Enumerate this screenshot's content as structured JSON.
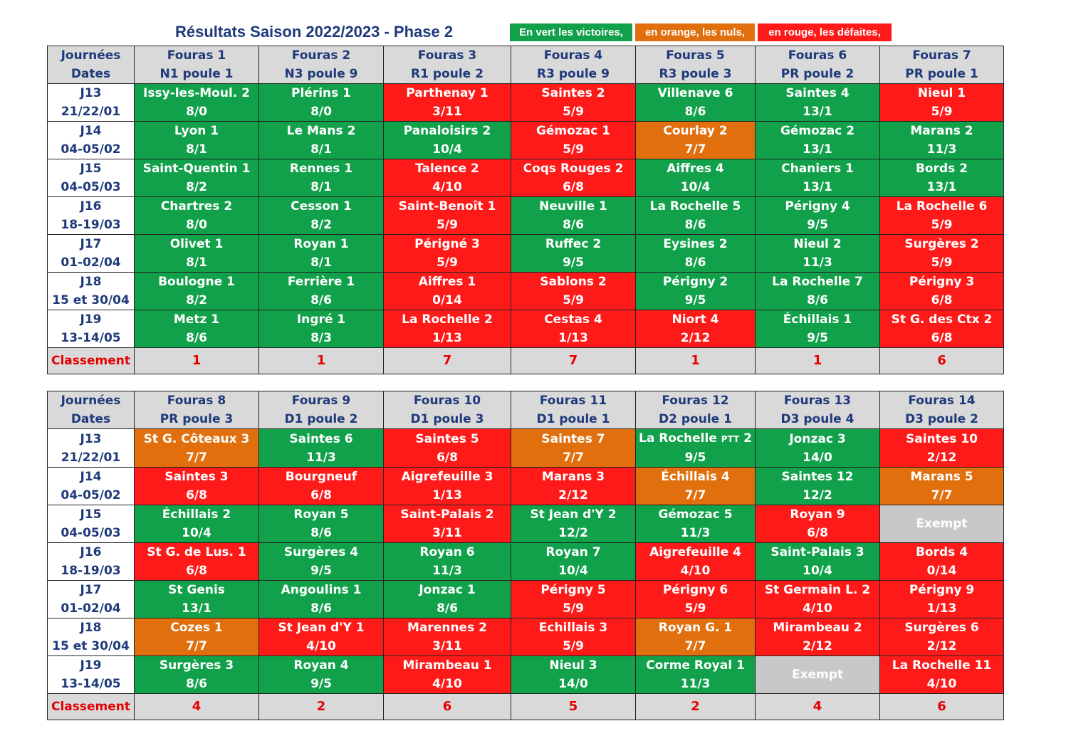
{
  "title": "Résultats Saison 2022/2023 - Phase 2",
  "legend": {
    "green": "En vert les victoires,",
    "orange": "en orange, les nuls,",
    "red": "en rouge, les défaites,"
  },
  "colors": {
    "win": "#12a14b",
    "draw": "#e16f0d",
    "loss": "#ff1a1a",
    "exempt": "#c8c8c8",
    "header": "#d9d9d9",
    "navy": "#1f3a7a"
  },
  "header_label": {
    "line1": "Journées",
    "line2": "Dates"
  },
  "ranking_label": "Classement",
  "days": [
    {
      "j": "J13",
      "date": "21/22/01"
    },
    {
      "j": "J14",
      "date": "04-05/02"
    },
    {
      "j": "J15",
      "date": "04-05/03"
    },
    {
      "j": "J16",
      "date": "18-19/03"
    },
    {
      "j": "J17",
      "date": "01-02/04"
    },
    {
      "j": "J18",
      "date": "15 et 30/04"
    },
    {
      "j": "J19",
      "date": "13-14/05"
    }
  ],
  "tables": [
    {
      "teams": [
        {
          "name": "Fouras 1",
          "division": "N1 poule 1"
        },
        {
          "name": "Fouras 2",
          "division": "N3 poule 9"
        },
        {
          "name": "Fouras 3",
          "division": "R1 poule 2"
        },
        {
          "name": "Fouras 4",
          "division": "R3 poule 9"
        },
        {
          "name": "Fouras 5",
          "division": "R3 poule 3"
        },
        {
          "name": "Fouras 6",
          "division": "PR poule 2"
        },
        {
          "name": "Fouras 7",
          "division": "PR poule 1"
        }
      ],
      "rows": [
        [
          {
            "o": "Issy-les-Moul. 2",
            "s": "8/0",
            "r": "W"
          },
          {
            "o": "Plérins 1",
            "s": "8/0",
            "r": "W"
          },
          {
            "o": "Parthenay 1",
            "s": "3/11",
            "r": "L"
          },
          {
            "o": "Saintes 2",
            "s": "5/9",
            "r": "L"
          },
          {
            "o": "Villenave 6",
            "s": "8/6",
            "r": "W"
          },
          {
            "o": "Saintes 4",
            "s": "13/1",
            "r": "W"
          },
          {
            "o": "Nieul 1",
            "s": "5/9",
            "r": "L"
          }
        ],
        [
          {
            "o": "Lyon 1",
            "s": "8/1",
            "r": "W"
          },
          {
            "o": "Le Mans 2",
            "s": "8/1",
            "r": "W"
          },
          {
            "o": "Panaloisirs 2",
            "s": "10/4",
            "r": "W"
          },
          {
            "o": "Gémozac 1",
            "s": "5/9",
            "r": "L"
          },
          {
            "o": "Courlay 2",
            "s": "7/7",
            "r": "D"
          },
          {
            "o": "Gémozac 2",
            "s": "13/1",
            "r": "W"
          },
          {
            "o": "Marans 2",
            "s": "11/3",
            "r": "W"
          }
        ],
        [
          {
            "o": "Saint-Quentin 1",
            "s": "8/2",
            "r": "W"
          },
          {
            "o": "Rennes 1",
            "s": "8/1",
            "r": "W"
          },
          {
            "o": "Talence 2",
            "s": "4/10",
            "r": "L"
          },
          {
            "o": "Coqs Rouges 2",
            "s": "6/8",
            "r": "L"
          },
          {
            "o": "Aiffres 4",
            "s": "10/4",
            "r": "W"
          },
          {
            "o": "Chaniers 1",
            "s": "13/1",
            "r": "W"
          },
          {
            "o": "Bords 2",
            "s": "13/1",
            "r": "W"
          }
        ],
        [
          {
            "o": "Chartres 2",
            "s": "8/0",
            "r": "W"
          },
          {
            "o": "Cesson 1",
            "s": "8/2",
            "r": "W"
          },
          {
            "o": "Saint-Benoît 1",
            "s": "5/9",
            "r": "L"
          },
          {
            "o": "Neuville 1",
            "s": "8/6",
            "r": "W"
          },
          {
            "o": "La Rochelle 5",
            "s": "8/6",
            "r": "W"
          },
          {
            "o": "Périgny 4",
            "s": "9/5",
            "r": "W"
          },
          {
            "o": "La Rochelle 6",
            "s": "5/9",
            "r": "L"
          }
        ],
        [
          {
            "o": "Olivet 1",
            "s": "8/1",
            "r": "W"
          },
          {
            "o": "Royan 1",
            "s": "8/1",
            "r": "W"
          },
          {
            "o": "Périgné 3",
            "s": "5/9",
            "r": "L"
          },
          {
            "o": "Ruffec 2",
            "s": "9/5",
            "r": "W"
          },
          {
            "o": "Eysines 2",
            "s": "8/6",
            "r": "W"
          },
          {
            "o": "Nieul 2",
            "s": "11/3",
            "r": "W"
          },
          {
            "o": "Surgères 2",
            "s": "5/9",
            "r": "L"
          }
        ],
        [
          {
            "o": "Boulogne 1",
            "s": "8/2",
            "r": "W"
          },
          {
            "o": "Ferrière 1",
            "s": "8/6",
            "r": "W"
          },
          {
            "o": "Aiffres 1",
            "s": "0/14",
            "r": "L"
          },
          {
            "o": "Sablons 2",
            "s": "5/9",
            "r": "L"
          },
          {
            "o": "Périgny 2",
            "s": "9/5",
            "r": "W"
          },
          {
            "o": "La Rochelle 7",
            "s": "8/6",
            "r": "W"
          },
          {
            "o": "Périgny 3",
            "s": "6/8",
            "r": "L"
          }
        ],
        [
          {
            "o": "Metz 1",
            "s": "8/6",
            "r": "W"
          },
          {
            "o": "Ingré 1",
            "s": "8/3",
            "r": "W"
          },
          {
            "o": "La Rochelle 2",
            "s": "1/13",
            "r": "L"
          },
          {
            "o": "Cestas 4",
            "s": "1/13",
            "r": "L"
          },
          {
            "o": "Niort 4",
            "s": "2/12",
            "r": "L"
          },
          {
            "o": "Échillais 1",
            "s": "9/5",
            "r": "W"
          },
          {
            "o": "St G. des Ctx 2",
            "s": "6/8",
            "r": "L"
          }
        ]
      ],
      "ranking": [
        "1",
        "1",
        "7",
        "7",
        "1",
        "1",
        "6"
      ]
    },
    {
      "teams": [
        {
          "name": "Fouras 8",
          "division": "PR poule 3"
        },
        {
          "name": "Fouras 9",
          "division": "D1 poule 2"
        },
        {
          "name": "Fouras 10",
          "division": "D1 poule 3"
        },
        {
          "name": "Fouras 11",
          "division": "D1 poule 1"
        },
        {
          "name": "Fouras 12",
          "division": "D2 poule 1"
        },
        {
          "name": "Fouras 13",
          "division": "D3 poule 4"
        },
        {
          "name": "Fouras 14",
          "division": "D3 poule 2"
        }
      ],
      "rows": [
        [
          {
            "o": "St G. Côteaux 3",
            "s": "7/7",
            "r": "D"
          },
          {
            "o": "Saintes 6",
            "s": "11/3",
            "r": "W"
          },
          {
            "o": "Saintes 5",
            "s": "6/8",
            "r": "L"
          },
          {
            "o": "Saintes 7",
            "s": "7/7",
            "r": "D"
          },
          {
            "o": "La Rochelle",
            "small": "PTT",
            "o2": "2",
            "s": "9/5",
            "r": "W"
          },
          {
            "o": "Jonzac 3",
            "s": "14/0",
            "r": "W"
          },
          {
            "o": "Saintes 10",
            "s": "2/12",
            "r": "L"
          }
        ],
        [
          {
            "o": "Saintes 3",
            "s": "6/8",
            "r": "L"
          },
          {
            "o": "Bourgneuf",
            "s": "6/8",
            "r": "L"
          },
          {
            "o": "Aigrefeuille 3",
            "s": "1/13",
            "r": "L"
          },
          {
            "o": "Marans 3",
            "s": "2/12",
            "r": "L"
          },
          {
            "o": "Échillais 4",
            "s": "7/7",
            "r": "D"
          },
          {
            "o": "Saintes 12",
            "s": "12/2",
            "r": "W"
          },
          {
            "o": "Marans 5",
            "s": "7/7",
            "r": "D"
          }
        ],
        [
          {
            "o": "Échillais 2",
            "s": "10/4",
            "r": "W"
          },
          {
            "o": "Royan 5",
            "s": "8/6",
            "r": "W"
          },
          {
            "o": "Saint-Palais 2",
            "s": "3/11",
            "r": "L"
          },
          {
            "o": "St Jean d'Y 2",
            "s": "12/2",
            "r": "W"
          },
          {
            "o": "Gémozac 5",
            "s": "11/3",
            "r": "W"
          },
          {
            "o": "Royan 9",
            "s": "6/8",
            "r": "L"
          },
          {
            "exempt": "Exempt",
            "r": "E"
          }
        ],
        [
          {
            "o": "St G. de Lus. 1",
            "s": "6/8",
            "r": "L"
          },
          {
            "o": "Surgères 4",
            "s": "9/5",
            "r": "W"
          },
          {
            "o": "Royan 6",
            "s": "11/3",
            "r": "W"
          },
          {
            "o": "Royan 7",
            "s": "10/4",
            "r": "W"
          },
          {
            "o": "Aigrefeuille 4",
            "s": "4/10",
            "r": "L"
          },
          {
            "o": "Saint-Palais 3",
            "s": "10/4",
            "r": "W"
          },
          {
            "o": "Bords 4",
            "s": "0/14",
            "r": "L"
          }
        ],
        [
          {
            "o": "St Genis",
            "s": "13/1",
            "r": "W"
          },
          {
            "o": "Angoulins 1",
            "s": "8/6",
            "r": "W"
          },
          {
            "o": "Jonzac 1",
            "s": "8/6",
            "r": "W"
          },
          {
            "o": "Périgny 5",
            "s": "5/9",
            "r": "L"
          },
          {
            "o": "Périgny 6",
            "s": "5/9",
            "r": "L"
          },
          {
            "o": "St Germain L. 2",
            "s": "4/10",
            "r": "L"
          },
          {
            "o": "Périgny 9",
            "s": "1/13",
            "r": "L"
          }
        ],
        [
          {
            "o": "Cozes 1",
            "s": "7/7",
            "r": "D"
          },
          {
            "o": "St Jean d'Y 1",
            "s": "4/10",
            "r": "L"
          },
          {
            "o": "Marennes 2",
            "s": "3/11",
            "r": "L"
          },
          {
            "o": "Echillais 3",
            "s": "5/9",
            "r": "L"
          },
          {
            "o": "Royan G. 1",
            "s": "7/7",
            "r": "D"
          },
          {
            "o": "Mirambeau 2",
            "s": "2/12",
            "r": "L"
          },
          {
            "o": "Surgères 6",
            "s": "2/12",
            "r": "L"
          }
        ],
        [
          {
            "o": "Surgères 3",
            "s": "8/6",
            "r": "W"
          },
          {
            "o": "Royan 4",
            "s": "9/5",
            "r": "W"
          },
          {
            "o": "Mirambeau 1",
            "s": "4/10",
            "r": "L"
          },
          {
            "o": "Nieul 3",
            "s": "14/0",
            "r": "W"
          },
          {
            "o": "Corme Royal 1",
            "s": "11/3",
            "r": "W"
          },
          {
            "exempt": "Exempt",
            "r": "E"
          },
          {
            "o": "La Rochelle 11",
            "s": "4/10",
            "r": "L"
          }
        ]
      ],
      "ranking": [
        "4",
        "2",
        "6",
        "5",
        "2",
        "4",
        "6"
      ]
    }
  ]
}
